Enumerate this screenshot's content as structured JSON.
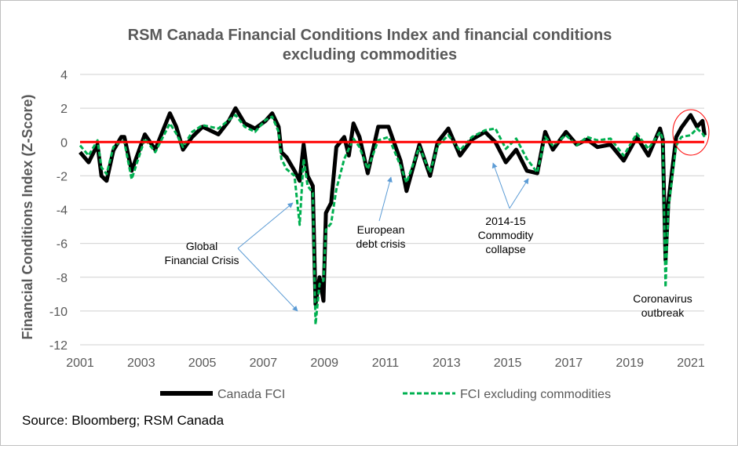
{
  "chart_data": {
    "type": "line",
    "title_line1": "RSM Canada Financial Conditions Index and financial conditions",
    "title_line2": "excluding commodities",
    "ylabel": "Financial Conditions Index (Z-Score)",
    "xlabel": "",
    "ylim": [
      -12,
      4
    ],
    "xlim": [
      2001,
      2021.45
    ],
    "yticks": [
      "4",
      "2",
      "0",
      "-2",
      "-4",
      "-6",
      "-8",
      "-10",
      "-12"
    ],
    "xticks": [
      "2001",
      "2003",
      "2005",
      "2007",
      "2009",
      "2011",
      "2013",
      "2015",
      "2017",
      "2019",
      "2021"
    ],
    "grid": true,
    "zero_line_color": "#ff0000",
    "legend_position": "bottom",
    "series": [
      {
        "name": "Canada FCI",
        "color": "#000000",
        "style": "solid",
        "x": [
          2001.0,
          2001.28,
          2001.57,
          2001.7,
          2001.87,
          2002.09,
          2002.35,
          2002.45,
          2002.69,
          2003.12,
          2003.46,
          2003.94,
          2004.15,
          2004.37,
          2004.67,
          2005.01,
          2005.53,
          2005.87,
          2006.09,
          2006.39,
          2006.73,
          2007.07,
          2007.29,
          2007.5,
          2007.59,
          2007.76,
          2008.02,
          2008.19,
          2008.32,
          2008.45,
          2008.62,
          2008.71,
          2008.84,
          2008.97,
          2009.05,
          2009.22,
          2009.39,
          2009.65,
          2009.8,
          2009.95,
          2010.15,
          2010.42,
          2010.76,
          2011.1,
          2011.49,
          2011.69,
          2012.11,
          2012.46,
          2012.71,
          2013.06,
          2013.44,
          2013.83,
          2014.26,
          2014.6,
          2014.94,
          2015.28,
          2015.63,
          2015.97,
          2016.23,
          2016.48,
          2016.91,
          2017.26,
          2017.6,
          2017.94,
          2018.37,
          2018.8,
          2019.23,
          2019.61,
          2019.99,
          2020.08,
          2020.17,
          2020.26,
          2020.52,
          2020.69,
          2020.99,
          2021.2,
          2021.38,
          2021.45
        ],
        "y": [
          -0.6,
          -1.2,
          -0.15,
          -2.0,
          -2.3,
          -0.5,
          0.3,
          0.3,
          -1.7,
          0.45,
          -0.45,
          1.7,
          0.9,
          -0.45,
          0.3,
          0.9,
          0.45,
          1.25,
          2.0,
          1.1,
          0.8,
          1.25,
          1.7,
          0.9,
          -0.6,
          -0.9,
          -1.7,
          -2.3,
          -0.15,
          -2.0,
          -2.6,
          -9.6,
          -8.0,
          -9.4,
          -4.2,
          -3.6,
          -0.3,
          0.3,
          -0.8,
          1.1,
          0.3,
          -1.85,
          0.9,
          0.9,
          -1.1,
          -2.9,
          -0.15,
          -2.0,
          0.0,
          0.8,
          -0.8,
          0.15,
          0.6,
          0.0,
          -1.2,
          -0.45,
          -1.7,
          -1.85,
          0.6,
          -0.45,
          0.6,
          -0.15,
          0.15,
          -0.3,
          -0.15,
          -1.1,
          0.3,
          -0.8,
          0.8,
          0.15,
          -7.0,
          -3.6,
          0.3,
          0.85,
          1.6,
          0.9,
          1.25,
          0.4
        ]
      },
      {
        "name": "FCI excluding commodities",
        "color": "#00b050",
        "style": "dashed",
        "x": [
          2001.0,
          2001.28,
          2001.57,
          2001.7,
          2001.87,
          2002.09,
          2002.35,
          2002.45,
          2002.69,
          2003.12,
          2003.46,
          2003.94,
          2004.15,
          2004.37,
          2004.67,
          2005.01,
          2005.53,
          2005.87,
          2006.09,
          2006.39,
          2006.73,
          2007.07,
          2007.29,
          2007.5,
          2007.59,
          2007.76,
          2008.02,
          2008.19,
          2008.32,
          2008.45,
          2008.62,
          2008.71,
          2008.84,
          2008.97,
          2009.05,
          2009.22,
          2009.39,
          2009.65,
          2009.8,
          2009.95,
          2010.15,
          2010.42,
          2010.76,
          2011.1,
          2011.49,
          2011.69,
          2012.11,
          2012.46,
          2012.71,
          2013.06,
          2013.44,
          2013.83,
          2014.26,
          2014.6,
          2014.94,
          2015.28,
          2015.63,
          2015.97,
          2016.23,
          2016.48,
          2016.91,
          2017.26,
          2017.6,
          2017.94,
          2018.37,
          2018.8,
          2019.23,
          2019.61,
          2019.99,
          2020.08,
          2020.17,
          2020.26,
          2020.52,
          2020.69,
          2020.99,
          2021.2,
          2021.38,
          2021.45
        ],
        "y": [
          -0.2,
          -0.8,
          0.1,
          -1.5,
          -1.9,
          -0.3,
          0.1,
          0.0,
          -2.2,
          0.2,
          -0.6,
          1.1,
          0.5,
          -0.3,
          0.6,
          1.0,
          0.8,
          1.3,
          1.6,
          0.9,
          0.6,
          1.3,
          1.5,
          0.6,
          -1.0,
          -1.6,
          -2.0,
          -4.9,
          -1.0,
          -2.6,
          -3.0,
          -10.8,
          -8.4,
          -8.2,
          -5.2,
          -4.8,
          -2.8,
          -1.0,
          -0.4,
          0.2,
          -0.3,
          -1.6,
          0.1,
          0.3,
          -1.4,
          -2.4,
          -0.3,
          -1.8,
          -0.2,
          0.4,
          -0.5,
          0.3,
          0.7,
          0.8,
          -0.4,
          0.2,
          -1.0,
          -1.8,
          0.3,
          -0.2,
          0.4,
          -0.2,
          0.3,
          0.1,
          0.2,
          -0.8,
          0.5,
          -0.4,
          0.6,
          0.2,
          -8.6,
          -4.0,
          -0.2,
          0.3,
          0.4,
          0.8,
          0.5,
          0.3
        ]
      }
    ],
    "annotations": {
      "gfc": [
        "Global",
        "Financial Crisis"
      ],
      "european": [
        "European",
        "debt crisis"
      ],
      "commodity": [
        "2014-15",
        "Commodity",
        "collapse"
      ],
      "covid": [
        "Coronavirus",
        "outbreak"
      ]
    },
    "source": "Source: Bloomberg; RSM Canada"
  }
}
